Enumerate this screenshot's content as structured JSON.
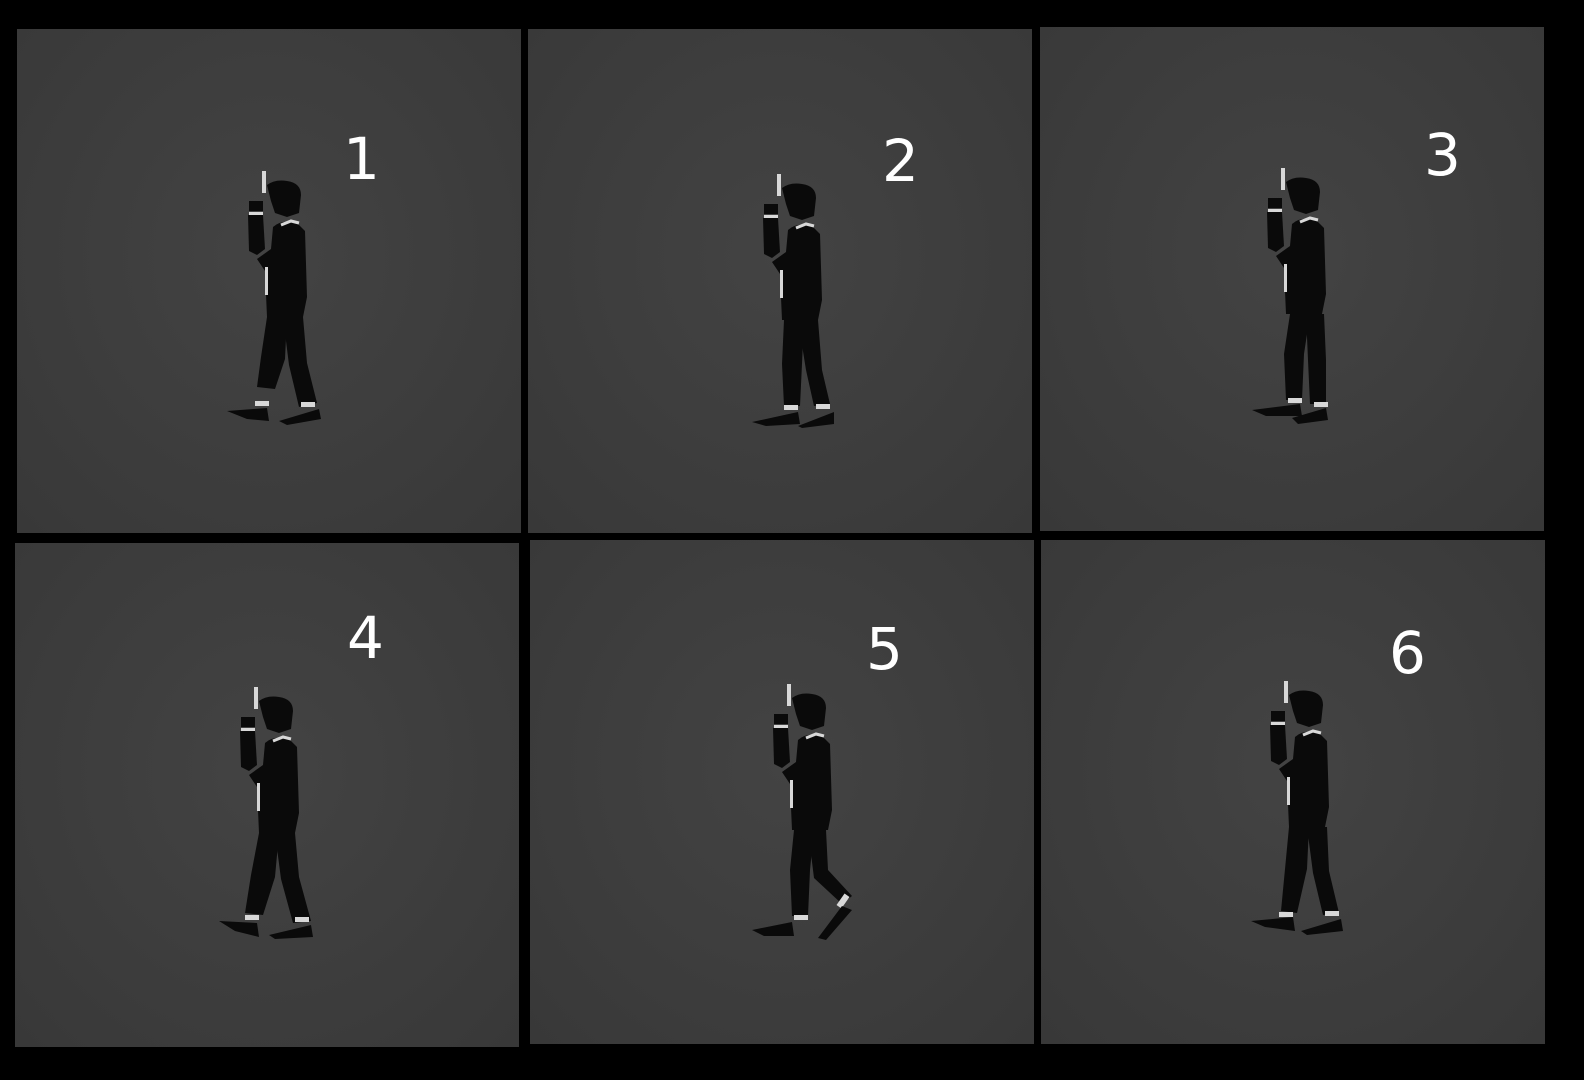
{
  "frames": [
    {
      "label": "1",
      "pose": "stride-wide"
    },
    {
      "label": "2",
      "pose": "stride-narrow"
    },
    {
      "label": "3",
      "pose": "passing"
    },
    {
      "label": "4",
      "pose": "stride-wide"
    },
    {
      "label": "5",
      "pose": "heel-lift"
    },
    {
      "label": "6",
      "pose": "stride-medium"
    }
  ],
  "colors": {
    "background": "#000000",
    "panel": "#3e3e3e",
    "figure": "#0a0a0a",
    "highlight": "#d8d8d8",
    "label": "#ffffff"
  },
  "icons": {
    "figure": "walking-figure-with-pistol"
  }
}
